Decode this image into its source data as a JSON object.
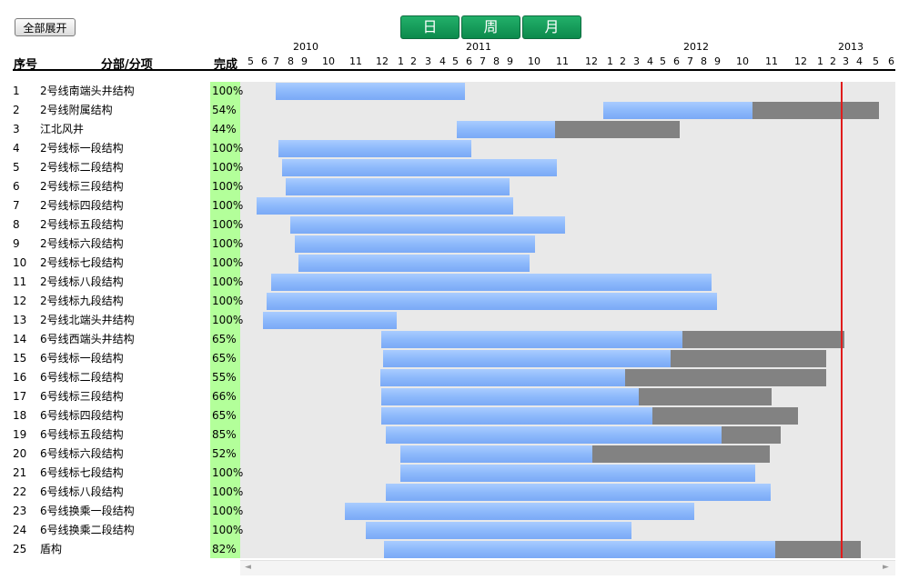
{
  "toolbar": {
    "expand_all": "全部展开",
    "view_day": "日",
    "view_week": "周",
    "view_month": "月"
  },
  "columns": {
    "no": "序号",
    "task": "分部/分项",
    "done": "完成"
  },
  "timeline": {
    "years": [
      "2010",
      "2011",
      "2012",
      "2013"
    ],
    "months": [
      "5",
      "6",
      "7",
      "8",
      "9",
      "10",
      "11",
      "12",
      "1",
      "2",
      "3",
      "4",
      "5",
      "6",
      "7",
      "8",
      "9",
      "10",
      "11",
      "12",
      "1",
      "2",
      "3",
      "4",
      "5",
      "6",
      "7",
      "8",
      "9",
      "10",
      "11",
      "12",
      "1",
      "2",
      "3",
      "4",
      "5",
      "6"
    ]
  },
  "colors": {
    "complete_col": "#b3ff9a",
    "bar_done": "#8db9fb",
    "bar_remaining": "#828282",
    "today_line": "#e01c1c"
  },
  "rows": [
    {
      "no": "1",
      "name": "2号线南端头井结构",
      "pct": "100%",
      "progress": 100
    },
    {
      "no": "2",
      "name": "2号线附属结构",
      "pct": "54%",
      "progress": 54
    },
    {
      "no": "3",
      "name": "江北风井",
      "pct": "44%",
      "progress": 44
    },
    {
      "no": "4",
      "name": "2号线标一段结构",
      "pct": "100%",
      "progress": 100
    },
    {
      "no": "5",
      "name": "2号线标二段结构",
      "pct": "100%",
      "progress": 100
    },
    {
      "no": "6",
      "name": "2号线标三段结构",
      "pct": "100%",
      "progress": 100
    },
    {
      "no": "7",
      "name": "2号线标四段结构",
      "pct": "100%",
      "progress": 100
    },
    {
      "no": "8",
      "name": "2号线标五段结构",
      "pct": "100%",
      "progress": 100
    },
    {
      "no": "9",
      "name": "2号线标六段结构",
      "pct": "100%",
      "progress": 100
    },
    {
      "no": "10",
      "name": "2号线标七段结构",
      "pct": "100%",
      "progress": 100
    },
    {
      "no": "11",
      "name": "2号线标八段结构",
      "pct": "100%",
      "progress": 100
    },
    {
      "no": "12",
      "name": "2号线标九段结构",
      "pct": "100%",
      "progress": 100
    },
    {
      "no": "13",
      "name": "2号线北端头井结构",
      "pct": "100%",
      "progress": 100
    },
    {
      "no": "14",
      "name": "6号线西端头井结构",
      "pct": "65%",
      "progress": 65
    },
    {
      "no": "15",
      "name": "6号线标一段结构",
      "pct": "65%",
      "progress": 65
    },
    {
      "no": "16",
      "name": "6号线标二段结构",
      "pct": "55%",
      "progress": 55
    },
    {
      "no": "17",
      "name": "6号线标三段结构",
      "pct": "66%",
      "progress": 66
    },
    {
      "no": "18",
      "name": "6号线标四段结构",
      "pct": "65%",
      "progress": 65
    },
    {
      "no": "19",
      "name": "6号线标五段结构",
      "pct": "85%",
      "progress": 85
    },
    {
      "no": "20",
      "name": "6号线标六段结构",
      "pct": "52%",
      "progress": 52
    },
    {
      "no": "21",
      "name": "6号线标七段结构",
      "pct": "100%",
      "progress": 100
    },
    {
      "no": "22",
      "name": "6号线标八段结构",
      "pct": "100%",
      "progress": 100
    },
    {
      "no": "23",
      "name": "6号线换乘一段结构",
      "pct": "100%",
      "progress": 100
    },
    {
      "no": "24",
      "name": "6号线换乘二段结构",
      "pct": "100%",
      "progress": 100
    },
    {
      "no": "25",
      "name": "盾构",
      "pct": "82%",
      "progress": 82
    }
  ]
}
